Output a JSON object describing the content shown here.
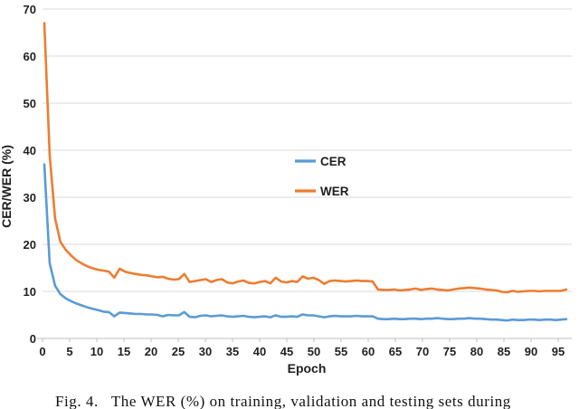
{
  "figure": {
    "caption": "Fig. 4.   The WER (%) on training, validation and testing sets during"
  },
  "chart_data": {
    "type": "line",
    "title": "",
    "xlabel": "Epoch",
    "ylabel": "CER/WER (%)",
    "xlim": [
      0,
      97
    ],
    "ylim": [
      0,
      70
    ],
    "xticks": [
      0,
      5,
      10,
      15,
      20,
      25,
      30,
      35,
      40,
      45,
      50,
      55,
      60,
      65,
      70,
      75,
      80,
      85,
      90,
      95
    ],
    "yticks": [
      0,
      10,
      20,
      30,
      40,
      50,
      60,
      70
    ],
    "grid": "horizontal",
    "legend_position": "inside-center-left",
    "colors": {
      "grid": "#d9d9d9",
      "axis": "#bfbfbf",
      "tick_text": "#1f1f1f"
    },
    "x": [
      0,
      1,
      2,
      3,
      4,
      5,
      6,
      7,
      8,
      9,
      10,
      11,
      12,
      13,
      14,
      15,
      16,
      17,
      18,
      19,
      20,
      21,
      22,
      23,
      24,
      25,
      26,
      27,
      28,
      29,
      30,
      31,
      32,
      33,
      34,
      35,
      36,
      37,
      38,
      39,
      40,
      41,
      42,
      43,
      44,
      45,
      46,
      47,
      48,
      49,
      50,
      51,
      52,
      53,
      54,
      55,
      56,
      57,
      58,
      59,
      60,
      61,
      62,
      63,
      64,
      65,
      66,
      67,
      68,
      69,
      70,
      71,
      72,
      73,
      74,
      75,
      76,
      77,
      78,
      79,
      80,
      81,
      82,
      83,
      84,
      85,
      86,
      87,
      88,
      89,
      90,
      91,
      92,
      93,
      94,
      95,
      96,
      97
    ],
    "series": [
      {
        "name": "CER",
        "color": "#5b9bd5",
        "values": [
          37,
          16,
          11.2,
          9.4,
          8.5,
          7.9,
          7.4,
          7.0,
          6.6,
          6.3,
          6.0,
          5.7,
          5.6,
          4.7,
          5.5,
          5.4,
          5.3,
          5.2,
          5.2,
          5.1,
          5.1,
          5.0,
          4.7,
          5.0,
          4.9,
          4.9,
          5.6,
          4.6,
          4.5,
          4.8,
          4.9,
          4.7,
          4.8,
          4.9,
          4.7,
          4.6,
          4.7,
          4.8,
          4.6,
          4.5,
          4.6,
          4.7,
          4.5,
          4.9,
          4.6,
          4.6,
          4.7,
          4.6,
          5.1,
          4.9,
          4.9,
          4.7,
          4.5,
          4.7,
          4.8,
          4.7,
          4.7,
          4.7,
          4.8,
          4.7,
          4.7,
          4.7,
          4.2,
          4.1,
          4.1,
          4.2,
          4.1,
          4.1,
          4.2,
          4.2,
          4.1,
          4.2,
          4.2,
          4.3,
          4.2,
          4.1,
          4.1,
          4.2,
          4.2,
          4.3,
          4.2,
          4.2,
          4.1,
          4.0,
          4.0,
          3.9,
          3.8,
          4.0,
          3.9,
          3.9,
          4.0,
          4.0,
          3.9,
          4.0,
          4.0,
          3.9,
          4.0,
          4.1
        ]
      },
      {
        "name": "WER",
        "color": "#ed7d31",
        "values": [
          67,
          39,
          25.5,
          20.5,
          18.8,
          17.6,
          16.6,
          15.9,
          15.3,
          14.9,
          14.6,
          14.4,
          14.2,
          12.9,
          14.8,
          14.2,
          13.9,
          13.7,
          13.5,
          13.4,
          13.2,
          13.0,
          13.1,
          12.7,
          12.5,
          12.6,
          13.7,
          12.0,
          12.2,
          12.4,
          12.6,
          12.0,
          12.4,
          12.6,
          11.9,
          11.7,
          12.1,
          12.3,
          11.8,
          11.7,
          12.0,
          12.2,
          11.7,
          12.9,
          12.1,
          11.9,
          12.2,
          12.0,
          13.2,
          12.7,
          12.9,
          12.4,
          11.6,
          12.2,
          12.3,
          12.2,
          12.1,
          12.2,
          12.3,
          12.2,
          12.2,
          12.1,
          10.4,
          10.3,
          10.3,
          10.4,
          10.2,
          10.3,
          10.4,
          10.6,
          10.3,
          10.5,
          10.6,
          10.4,
          10.3,
          10.2,
          10.4,
          10.6,
          10.7,
          10.8,
          10.7,
          10.6,
          10.4,
          10.3,
          10.2,
          9.9,
          9.8,
          10.1,
          9.9,
          10.0,
          10.1,
          10.1,
          10.0,
          10.1,
          10.1,
          10.1,
          10.1,
          10.4
        ]
      }
    ]
  }
}
